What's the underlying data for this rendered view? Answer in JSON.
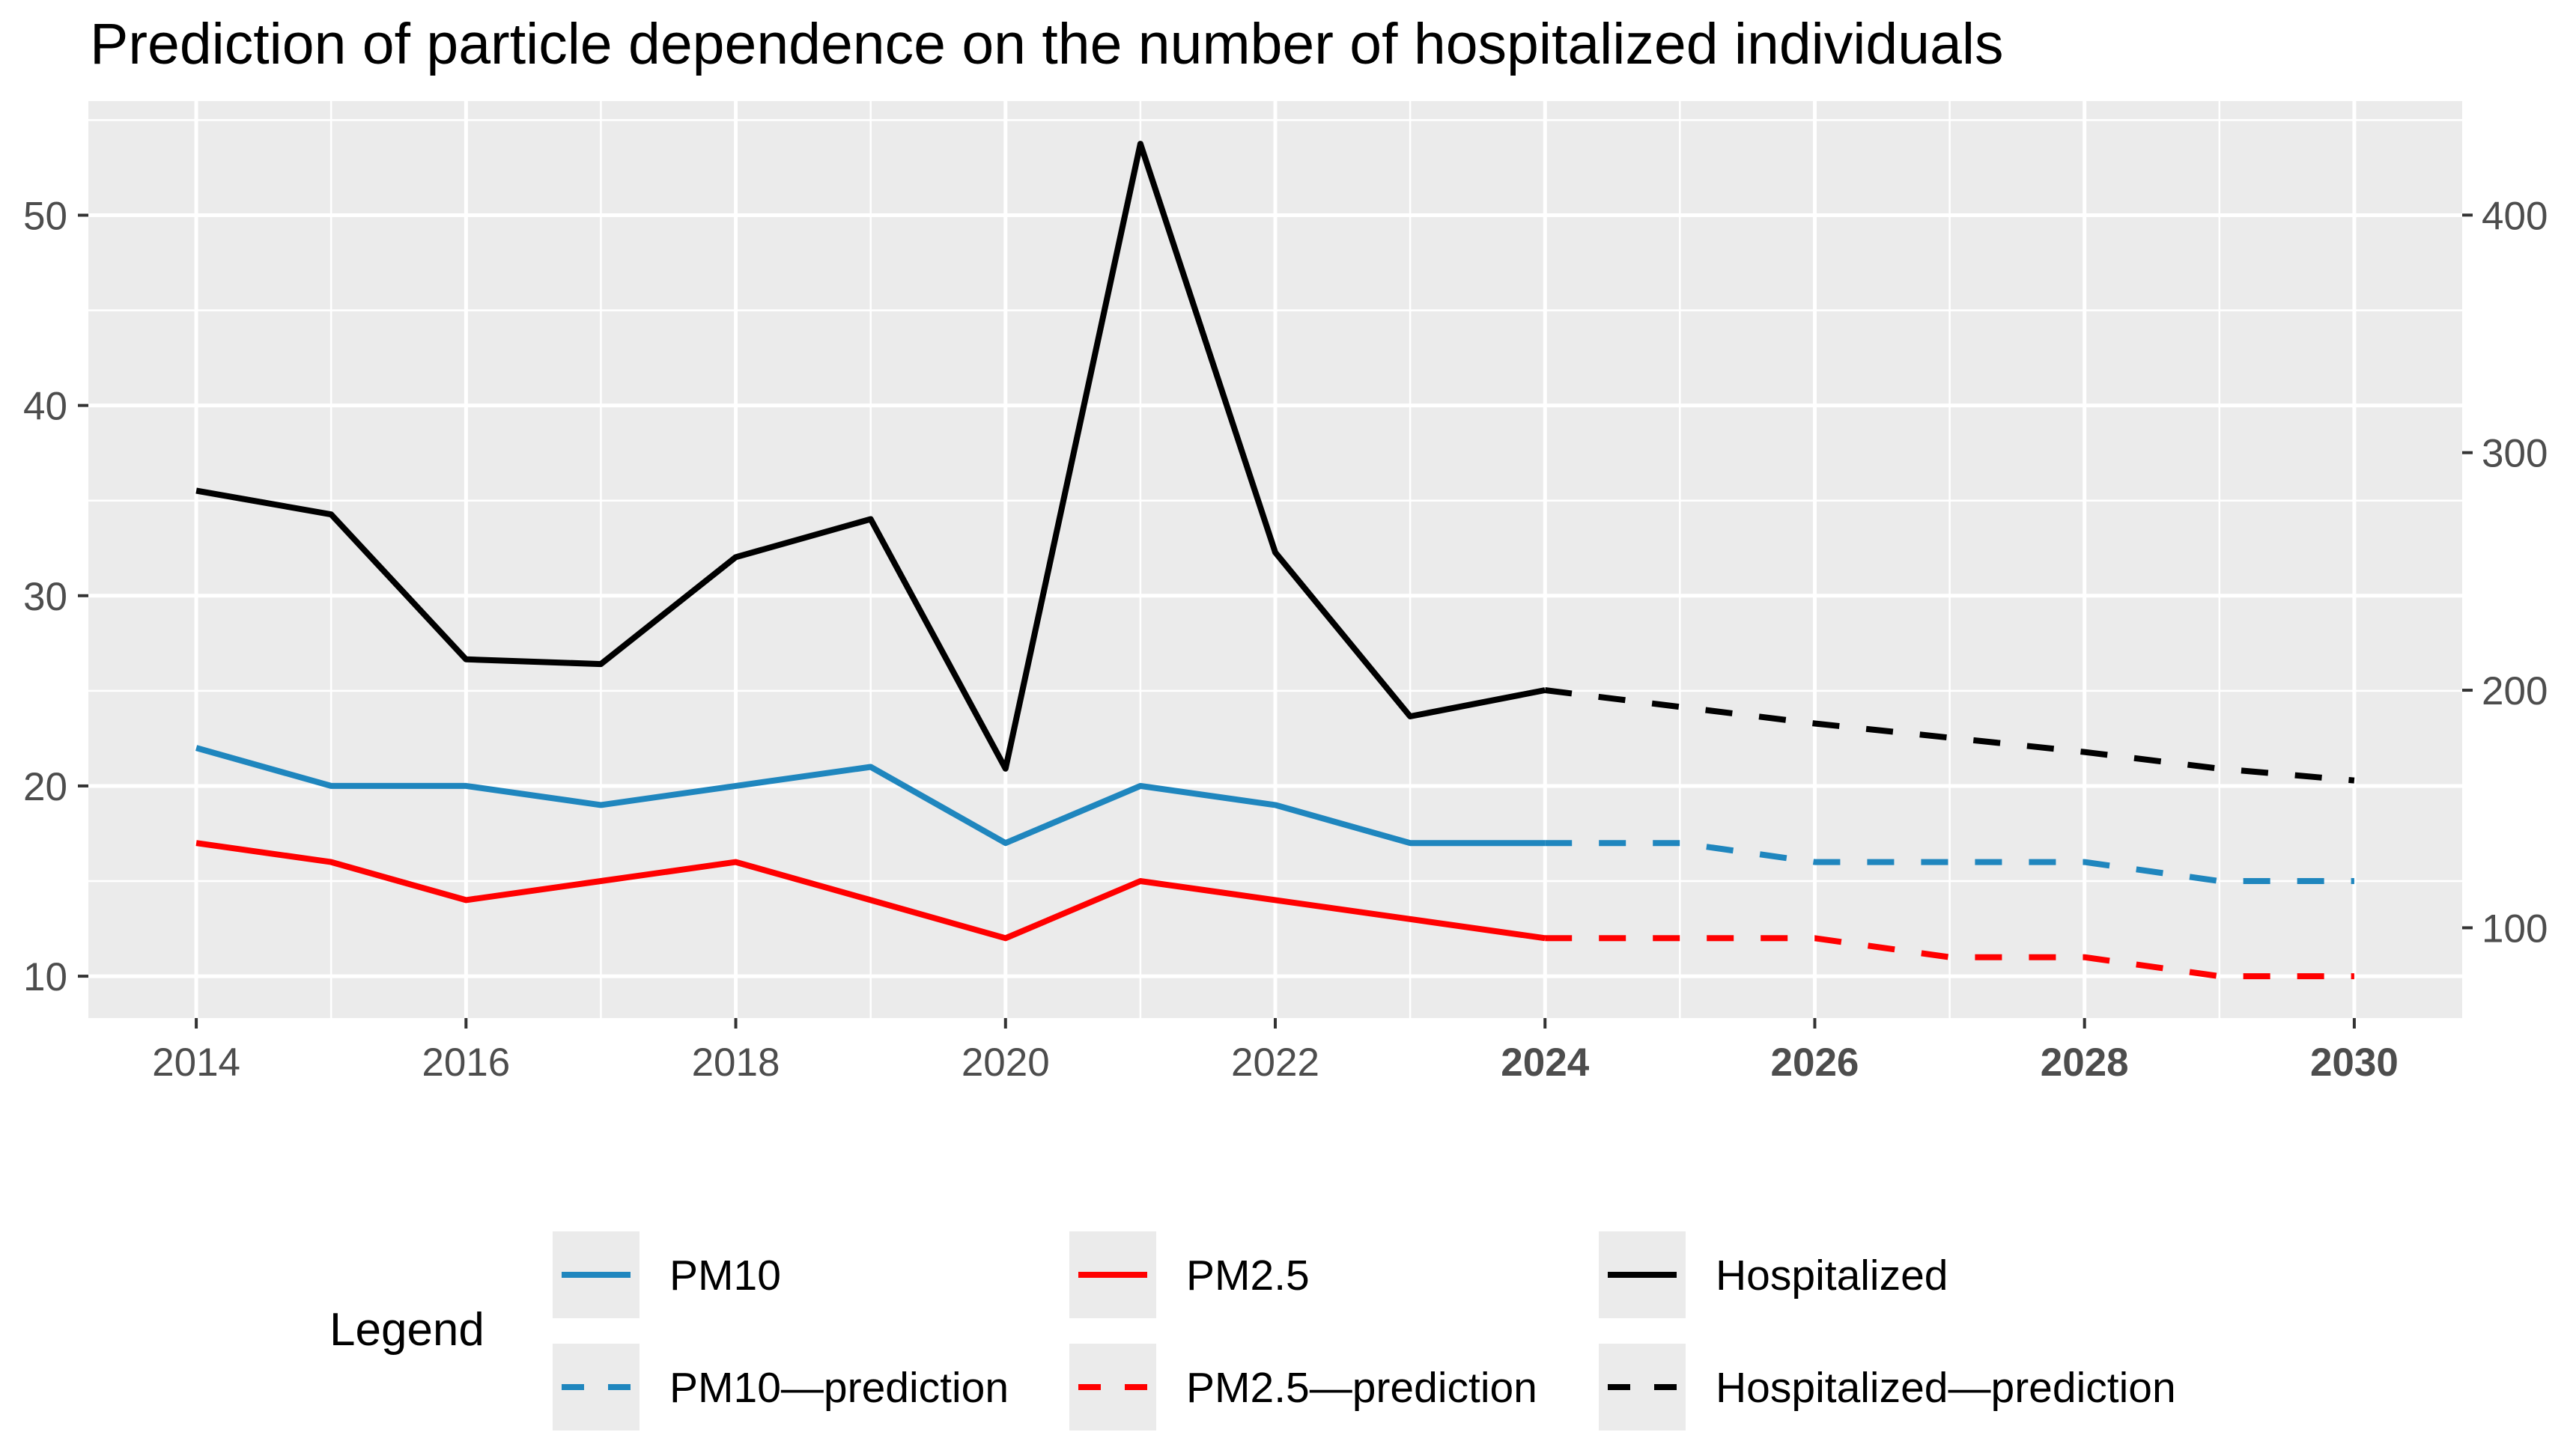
{
  "chart_data": {
    "type": "line",
    "title": "Prediction of particle dependence on the number of hospitalized individuals",
    "xlabel": "",
    "ylabel": "",
    "xlim": [
      2013.2,
      2030.8
    ],
    "ylim_left": [
      7.8,
      56
    ],
    "ylim_right": [
      62,
      448
    ],
    "x_ticks": [
      {
        "value": 2014,
        "label": "2014",
        "bold": false
      },
      {
        "value": 2016,
        "label": "2016",
        "bold": false
      },
      {
        "value": 2018,
        "label": "2018",
        "bold": false
      },
      {
        "value": 2020,
        "label": "2020",
        "bold": false
      },
      {
        "value": 2022,
        "label": "2022",
        "bold": false
      },
      {
        "value": 2024,
        "label": "2024",
        "bold": true
      },
      {
        "value": 2026,
        "label": "2026",
        "bold": true
      },
      {
        "value": 2028,
        "label": "2028",
        "bold": true
      },
      {
        "value": 2030,
        "label": "2030",
        "bold": true
      }
    ],
    "y_ticks_left": [
      10,
      20,
      30,
      40,
      50
    ],
    "y_ticks_right": [
      100,
      200,
      300,
      400
    ],
    "grid": true,
    "legend_position": "bottom",
    "legend_title": "Legend",
    "series": [
      {
        "name": "PM10",
        "axis": "left",
        "color": "#1f86be",
        "style": "solid",
        "x": [
          2014,
          2015,
          2016,
          2017,
          2018,
          2019,
          2020,
          2021,
          2022,
          2023,
          2024
        ],
        "values": [
          22,
          20,
          20,
          19,
          20,
          21,
          17,
          20,
          19,
          17,
          17
        ]
      },
      {
        "name": "PM2.5",
        "axis": "left",
        "color": "#ff0000",
        "style": "solid",
        "x": [
          2014,
          2015,
          2016,
          2017,
          2018,
          2019,
          2020,
          2021,
          2022,
          2023,
          2024
        ],
        "values": [
          17,
          16,
          14,
          15,
          16,
          14,
          12,
          15,
          14,
          13,
          12
        ]
      },
      {
        "name": "Hospitalized",
        "axis": "right",
        "color": "#000000",
        "style": "solid",
        "x": [
          2014,
          2015,
          2016,
          2017,
          2018,
          2019,
          2020,
          2021,
          2022,
          2023,
          2024
        ],
        "values": [
          284,
          274,
          213,
          211,
          256,
          272,
          167,
          430,
          258,
          189,
          200
        ]
      },
      {
        "name": "PM10—prediction",
        "axis": "left",
        "color": "#1f86be",
        "style": "dashed",
        "x": [
          2024,
          2025,
          2026,
          2027,
          2028,
          2029,
          2030
        ],
        "values": [
          17,
          17,
          16,
          16,
          16,
          15,
          15
        ]
      },
      {
        "name": "PM2.5—prediction",
        "axis": "left",
        "color": "#ff0000",
        "style": "dashed",
        "x": [
          2024,
          2025,
          2026,
          2027,
          2028,
          2029,
          2030
        ],
        "values": [
          12,
          12,
          12,
          11,
          11,
          10,
          10
        ]
      },
      {
        "name": "Hospitalized—prediction",
        "axis": "right",
        "color": "#000000",
        "style": "dashed",
        "x": [
          2024,
          2025,
          2026,
          2027,
          2028,
          2029,
          2030
        ],
        "values": [
          200,
          193,
          186,
          180,
          174,
          167,
          162
        ]
      }
    ]
  }
}
